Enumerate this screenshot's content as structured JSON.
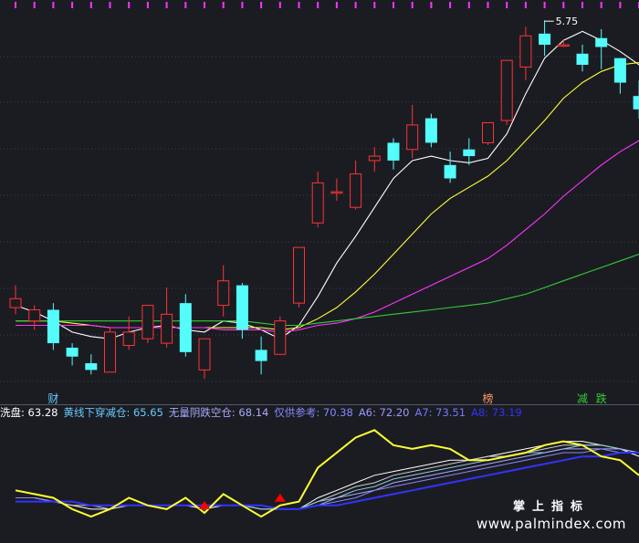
{
  "chart_data": {
    "type": "candlestick",
    "price_annotation": "5.75",
    "x": [
      0,
      1,
      2,
      3,
      4,
      5,
      6,
      7,
      8,
      9,
      10,
      11,
      12,
      13,
      14,
      15,
      16,
      17,
      18,
      19,
      20,
      21,
      22,
      23,
      24,
      25,
      26,
      27,
      28,
      29,
      30,
      31,
      32,
      33
    ],
    "candles": [
      {
        "o": 4.46,
        "c": 4.5,
        "h": 4.56,
        "l": 4.43
      },
      {
        "o": 4.4,
        "c": 4.45,
        "h": 4.47,
        "l": 4.36
      },
      {
        "o": 4.45,
        "c": 4.3,
        "h": 4.48,
        "l": 4.27
      },
      {
        "o": 4.28,
        "c": 4.24,
        "h": 4.3,
        "l": 4.2
      },
      {
        "o": 4.21,
        "c": 4.18,
        "h": 4.25,
        "l": 4.16
      },
      {
        "o": 4.17,
        "c": 4.35,
        "h": 4.37,
        "l": 4.17
      },
      {
        "o": 4.29,
        "c": 4.35,
        "h": 4.42,
        "l": 4.27
      },
      {
        "o": 4.32,
        "c": 4.47,
        "h": 4.47,
        "l": 4.3
      },
      {
        "o": 4.3,
        "c": 4.43,
        "h": 4.55,
        "l": 4.28
      },
      {
        "o": 4.48,
        "c": 4.26,
        "h": 4.52,
        "l": 4.24
      },
      {
        "o": 4.18,
        "c": 4.32,
        "h": 4.32,
        "l": 4.14
      },
      {
        "o": 4.47,
        "c": 4.58,
        "h": 4.65,
        "l": 4.42
      },
      {
        "o": 4.56,
        "c": 4.36,
        "h": 4.57,
        "l": 4.32
      },
      {
        "o": 4.27,
        "c": 4.22,
        "h": 4.33,
        "l": 4.16
      },
      {
        "o": 4.25,
        "c": 4.4,
        "h": 4.42,
        "l": 4.25
      },
      {
        "o": 4.48,
        "c": 4.73,
        "h": 4.73,
        "l": 4.46
      },
      {
        "o": 4.84,
        "c": 5.02,
        "h": 5.07,
        "l": 4.82
      },
      {
        "o": 4.98,
        "c": 4.98,
        "h": 5.04,
        "l": 4.94
      },
      {
        "o": 4.91,
        "c": 5.06,
        "h": 5.12,
        "l": 4.9
      },
      {
        "o": 5.12,
        "c": 5.14,
        "h": 5.18,
        "l": 5.07
      },
      {
        "o": 5.2,
        "c": 5.12,
        "h": 5.22,
        "l": 5.08
      },
      {
        "o": 5.17,
        "c": 5.28,
        "h": 5.37,
        "l": 5.13
      },
      {
        "o": 5.31,
        "c": 5.2,
        "h": 5.33,
        "l": 5.18
      },
      {
        "o": 5.1,
        "c": 5.04,
        "h": 5.16,
        "l": 5.02
      },
      {
        "o": 5.17,
        "c": 5.14,
        "h": 5.22,
        "l": 5.1
      },
      {
        "o": 5.2,
        "c": 5.29,
        "h": 5.29,
        "l": 5.19
      },
      {
        "o": 5.3,
        "c": 5.57,
        "h": 5.57,
        "l": 5.28
      },
      {
        "o": 5.54,
        "c": 5.68,
        "h": 5.72,
        "l": 5.48
      },
      {
        "o": 5.69,
        "c": 5.64,
        "h": 5.75,
        "l": 5.59
      },
      {
        "o": 5.64,
        "c": 5.64,
        "h": 5.66,
        "l": 5.63
      },
      {
        "o": 5.6,
        "c": 5.55,
        "h": 5.64,
        "l": 5.52
      },
      {
        "o": 5.67,
        "c": 5.63,
        "h": 5.71,
        "l": 5.53
      },
      {
        "o": 5.58,
        "c": 5.47,
        "h": 5.58,
        "l": 5.42
      },
      {
        "o": 5.41,
        "c": 5.35,
        "h": 5.48,
        "l": 5.31
      }
    ],
    "overlay_lines": [
      {
        "color": "#ffffff",
        "values": [
          4.47,
          4.44,
          4.4,
          4.35,
          4.33,
          4.32,
          4.35,
          4.37,
          4.38,
          4.36,
          4.35,
          4.4,
          4.39,
          4.36,
          4.32,
          4.38,
          4.51,
          4.66,
          4.78,
          4.91,
          5.04,
          5.12,
          5.14,
          5.12,
          5.11,
          5.13,
          5.24,
          5.42,
          5.58,
          5.66,
          5.7,
          5.66,
          5.61,
          5.55
        ]
      },
      {
        "color": "#ffff33",
        "values": [
          4.4,
          4.4,
          4.4,
          4.39,
          4.38,
          4.37,
          4.37,
          4.37,
          4.37,
          4.37,
          4.37,
          4.37,
          4.37,
          4.37,
          4.36,
          4.37,
          4.41,
          4.46,
          4.53,
          4.61,
          4.7,
          4.79,
          4.88,
          4.95,
          5.0,
          5.05,
          5.12,
          5.21,
          5.3,
          5.4,
          5.47,
          5.52,
          5.55,
          5.56
        ]
      },
      {
        "color": "#ff33ff",
        "values": [
          4.38,
          4.38,
          4.38,
          4.38,
          4.38,
          4.37,
          4.37,
          4.37,
          4.37,
          4.37,
          4.37,
          4.36,
          4.36,
          4.36,
          4.35,
          4.36,
          4.38,
          4.39,
          4.41,
          4.44,
          4.48,
          4.52,
          4.56,
          4.6,
          4.64,
          4.68,
          4.74,
          4.81,
          4.88,
          4.96,
          5.03,
          5.1,
          5.16,
          5.21
        ]
      },
      {
        "color": "#33cc33",
        "values": [
          4.4,
          4.4,
          4.4,
          4.4,
          4.4,
          4.4,
          4.4,
          4.4,
          4.4,
          4.4,
          4.4,
          4.4,
          4.4,
          4.39,
          4.38,
          4.38,
          4.39,
          4.4,
          4.41,
          4.42,
          4.43,
          4.44,
          4.45,
          4.46,
          4.47,
          4.48,
          4.5,
          4.52,
          4.55,
          4.58,
          4.61,
          4.64,
          4.67,
          4.7
        ]
      }
    ],
    "markers": [
      {
        "x": 2,
        "text": "财",
        "color": "#66ccff"
      },
      {
        "x": 25,
        "text": "榜",
        "color": "#ff9966"
      },
      {
        "x": 30,
        "text": "减",
        "color": "#33cc33"
      },
      {
        "x": 31,
        "text": "跌",
        "color": "#33cc33"
      }
    ],
    "indicator_labels": [
      {
        "text": "洗盘: 63.28",
        "color": "#ffffff"
      },
      {
        "text": "黄线下穿减仓: 65.65",
        "color": "#66ccff"
      },
      {
        "text": "无量阴跌空仓: 68.14",
        "color": "#aaaaff"
      },
      {
        "text": "仅供参考: 70.38",
        "color": "#8888ff"
      },
      {
        "text": "A6: 72.20",
        "color": "#9999ff"
      },
      {
        "text": "A7: 73.51",
        "color": "#7777ff"
      },
      {
        "text": "A8: 73.19",
        "color": "#3333ff"
      }
    ],
    "indicator_yellow": [
      62,
      61,
      60,
      57,
      55,
      57,
      60,
      58,
      57,
      60,
      56,
      61,
      58,
      55,
      58,
      59,
      68,
      72,
      76,
      78,
      74,
      73,
      74,
      73,
      70,
      70,
      71,
      72,
      74,
      75,
      74,
      71,
      70,
      66
    ],
    "indicator_lines": [
      {
        "color": "#ffffff",
        "values": [
          60,
          60,
          59,
          58,
          57,
          57,
          58,
          58,
          58,
          58,
          57,
          58,
          58,
          57,
          57,
          57,
          60,
          62,
          64,
          66,
          67,
          68,
          69,
          70,
          70,
          71,
          72,
          73,
          74,
          75,
          75,
          74,
          73,
          71
        ]
      },
      {
        "color": "#cccccc",
        "values": [
          60,
          60,
          59,
          58,
          58,
          57,
          58,
          58,
          58,
          58,
          58,
          58,
          58,
          57,
          57,
          57,
          59,
          61,
          63,
          64,
          66,
          67,
          68,
          69,
          70,
          71,
          71,
          72,
          73,
          74,
          74,
          74,
          73,
          72
        ]
      },
      {
        "color": "#88ccdd",
        "values": [
          60,
          60,
          59,
          59,
          58,
          58,
          58,
          58,
          58,
          58,
          58,
          58,
          58,
          57,
          57,
          57,
          59,
          60,
          62,
          63,
          65,
          66,
          67,
          68,
          69,
          70,
          71,
          72,
          72,
          73,
          74,
          74,
          73,
          72
        ]
      },
      {
        "color": "#aaaaff",
        "values": [
          60,
          60,
          59,
          59,
          58,
          58,
          58,
          58,
          58,
          58,
          58,
          58,
          58,
          58,
          57,
          57,
          58,
          60,
          61,
          62,
          64,
          65,
          66,
          67,
          68,
          69,
          70,
          71,
          72,
          73,
          73,
          73,
          73,
          72
        ]
      },
      {
        "color": "#8888ff",
        "values": [
          60,
          60,
          59,
          59,
          58,
          58,
          58,
          58,
          58,
          58,
          58,
          58,
          58,
          58,
          57,
          57,
          58,
          59,
          60,
          62,
          63,
          64,
          65,
          66,
          67,
          68,
          69,
          70,
          71,
          72,
          72,
          73,
          72,
          72
        ]
      },
      {
        "color": "#3333ff",
        "values": [
          59,
          59,
          59,
          59,
          58,
          58,
          58,
          58,
          58,
          58,
          58,
          58,
          58,
          58,
          57,
          57,
          58,
          58,
          59,
          60,
          61,
          62,
          63,
          64,
          65,
          66,
          67,
          68,
          69,
          70,
          71,
          71,
          72,
          72
        ]
      }
    ],
    "indicator_signals": [
      {
        "x": 10
      },
      {
        "x": 14
      }
    ],
    "grid": true,
    "colors": {
      "up": "#ff3333",
      "down": "#54fcfc",
      "background": "#1b1c22",
      "grid": "#3c3f4a",
      "axis_marks": "#ff33ff",
      "signal": "#ff0000"
    }
  },
  "watermark": {
    "title": "掌上指标",
    "url": "www.palmindex.com"
  }
}
